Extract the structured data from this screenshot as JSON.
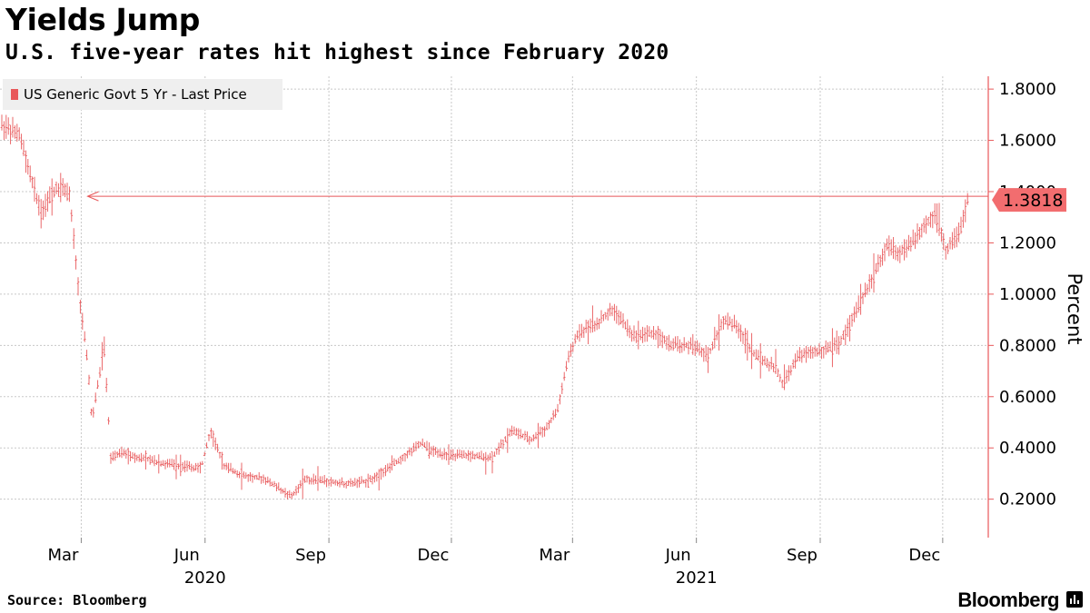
{
  "header": {
    "title": "Yields Jump",
    "subtitle": "U.S. five-year rates hit highest since February 2020"
  },
  "footer": {
    "source": "Source: Bloomberg",
    "brand": "Bloomberg"
  },
  "colors": {
    "series": "#e8585a",
    "grid": "#c8c8c8",
    "legend_bg": "#efefef",
    "label_bg": "#f26d6f"
  },
  "chart_data": {
    "type": "line",
    "style": "ohlc-bars",
    "ylabel": "Percent",
    "yaxis_side": "right",
    "ylim": [
      0.05,
      1.85
    ],
    "yticks": [
      1.8,
      1.6,
      1.4,
      1.2,
      1.0,
      0.8,
      0.6,
      0.4,
      0.2
    ],
    "ytick_labels": [
      "1.8000",
      "1.6000",
      "1.4000",
      "1.2000",
      "1.0000",
      "0.8000",
      "0.6000",
      "0.4000",
      "0.2000"
    ],
    "xlim": [
      "2020-01-02",
      "2021-12-20"
    ],
    "xticks": [
      {
        "date": "2020-03-01",
        "label": "Mar"
      },
      {
        "date": "2020-06-01",
        "label": "Jun"
      },
      {
        "date": "2020-09-01",
        "label": "Sep"
      },
      {
        "date": "2020-12-01",
        "label": "Dec"
      },
      {
        "date": "2021-03-01",
        "label": "Mar"
      },
      {
        "date": "2021-06-01",
        "label": "Jun"
      },
      {
        "date": "2021-09-01",
        "label": "Sep"
      },
      {
        "date": "2021-12-01",
        "label": "Dec"
      }
    ],
    "year_labels": [
      {
        "date": "2020-06-01",
        "label": "2020"
      },
      {
        "date": "2021-06-01",
        "label": "2021"
      }
    ],
    "grid": true,
    "legend": {
      "position": "top-left",
      "entries": [
        "US Generic Govt 5 Yr - Last Price"
      ]
    },
    "series": [
      {
        "name": "US Generic Govt 5 Yr - Last Price",
        "x": [
          "2020-01-02",
          "2020-01-15",
          "2020-01-31",
          "2020-02-12",
          "2020-02-21",
          "2020-02-28",
          "2020-03-06",
          "2020-03-09",
          "2020-03-18",
          "2020-03-23",
          "2020-03-31",
          "2020-04-15",
          "2020-04-30",
          "2020-05-15",
          "2020-05-29",
          "2020-06-05",
          "2020-06-15",
          "2020-06-30",
          "2020-07-15",
          "2020-08-04",
          "2020-08-15",
          "2020-08-31",
          "2020-09-15",
          "2020-09-30",
          "2020-10-15",
          "2020-10-30",
          "2020-11-09",
          "2020-11-15",
          "2020-11-30",
          "2020-12-15",
          "2020-12-31",
          "2021-01-15",
          "2021-01-29",
          "2021-02-10",
          "2021-02-18",
          "2021-02-25",
          "2021-03-05",
          "2021-03-18",
          "2021-03-31",
          "2021-04-15",
          "2021-04-30",
          "2021-05-14",
          "2021-05-28",
          "2021-06-10",
          "2021-06-21",
          "2021-06-30",
          "2021-07-15",
          "2021-07-30",
          "2021-08-04",
          "2021-08-16",
          "2021-08-31",
          "2021-09-15",
          "2021-09-30",
          "2021-10-15",
          "2021-10-21",
          "2021-10-29",
          "2021-11-05",
          "2021-11-15",
          "2021-11-26",
          "2021-12-03",
          "2021-12-14",
          "2021-12-20"
        ],
        "y": [
          1.66,
          1.62,
          1.32,
          1.42,
          1.4,
          1.02,
          0.72,
          0.5,
          0.8,
          0.36,
          0.38,
          0.36,
          0.34,
          0.33,
          0.32,
          0.47,
          0.33,
          0.29,
          0.28,
          0.21,
          0.28,
          0.27,
          0.26,
          0.27,
          0.32,
          0.38,
          0.42,
          0.39,
          0.37,
          0.37,
          0.36,
          0.47,
          0.43,
          0.48,
          0.55,
          0.73,
          0.85,
          0.88,
          0.94,
          0.84,
          0.85,
          0.8,
          0.8,
          0.76,
          0.9,
          0.88,
          0.76,
          0.71,
          0.65,
          0.76,
          0.78,
          0.8,
          0.96,
          1.12,
          1.2,
          1.16,
          1.18,
          1.25,
          1.32,
          1.17,
          1.24,
          1.38
        ]
      }
    ],
    "reference_line": {
      "y": 1.3818,
      "from": "2020-02-28",
      "to": "2021-12-20",
      "arrow": "left"
    },
    "last_value_label": "1.3818"
  }
}
